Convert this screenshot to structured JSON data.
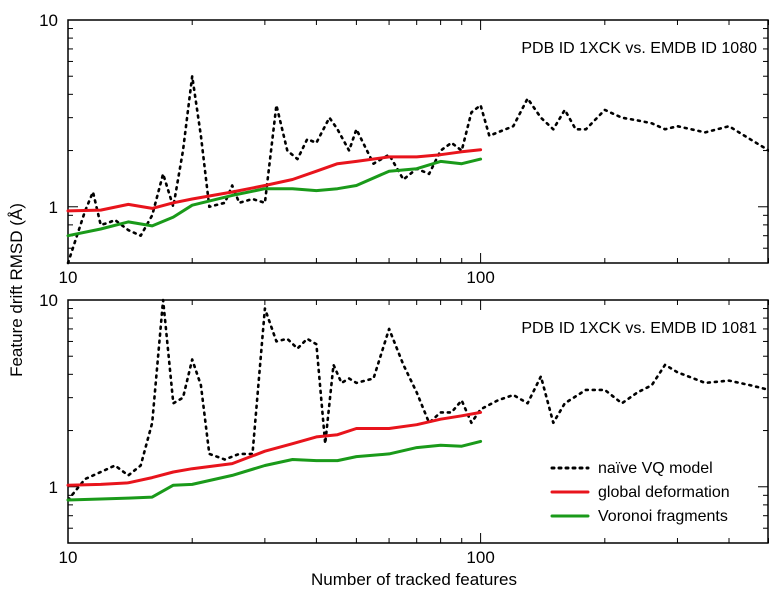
{
  "chart_data": [
    {
      "type": "line",
      "annotation": "PDB ID 1XCK vs. EMDB ID 1080",
      "xlabel": "",
      "ylabel": "",
      "xscale": "log",
      "yscale": "log",
      "xlim": [
        10,
        500
      ],
      "ylim": [
        0.5,
        10
      ],
      "x_tick_labels": [
        "10",
        "100"
      ],
      "y_tick_labels": [
        "1",
        "10"
      ],
      "series": [
        {
          "name": "naïve VQ model",
          "style": "dotted",
          "color": "#000000",
          "x": [
            10,
            11,
            11.5,
            12,
            12.5,
            13,
            14,
            15,
            16,
            17,
            18,
            19,
            20,
            21,
            22,
            24,
            25,
            26,
            28,
            30,
            32,
            34,
            36,
            38,
            40,
            43,
            45,
            48,
            50,
            55,
            60,
            65,
            70,
            75,
            80,
            85,
            90,
            95,
            100,
            105,
            110,
            120,
            130,
            140,
            150,
            160,
            170,
            180,
            200,
            220,
            240,
            260,
            280,
            300,
            350,
            400,
            450,
            500
          ],
          "y": [
            0.5,
            0.95,
            1.2,
            0.8,
            0.82,
            0.85,
            0.75,
            0.7,
            0.9,
            1.5,
            1.0,
            2.0,
            5.0,
            2.4,
            1.0,
            1.05,
            1.3,
            1.05,
            1.1,
            1.05,
            3.5,
            2.0,
            1.8,
            2.3,
            2.2,
            3.0,
            2.6,
            2.0,
            2.6,
            1.7,
            1.9,
            1.4,
            1.6,
            1.5,
            2.0,
            2.2,
            2.0,
            3.2,
            3.5,
            2.4,
            2.5,
            2.7,
            3.8,
            3.0,
            2.6,
            3.3,
            2.6,
            2.6,
            3.3,
            3.0,
            2.9,
            2.8,
            2.6,
            2.7,
            2.5,
            2.7,
            2.3,
            2.0
          ]
        },
        {
          "name": "global deformation",
          "style": "solid",
          "color": "#e8141c",
          "x": [
            10,
            12,
            14,
            16,
            18,
            20,
            25,
            30,
            35,
            40,
            45,
            50,
            60,
            70,
            80,
            90,
            100
          ],
          "y": [
            0.95,
            0.96,
            1.03,
            0.98,
            1.05,
            1.1,
            1.2,
            1.3,
            1.4,
            1.55,
            1.7,
            1.75,
            1.85,
            1.85,
            1.9,
            1.97,
            2.02
          ]
        },
        {
          "name": "Voronoi fragments",
          "style": "solid",
          "color": "#1a9a1a",
          "x": [
            10,
            12,
            14,
            16,
            18,
            20,
            25,
            30,
            35,
            40,
            45,
            50,
            60,
            70,
            80,
            90,
            100
          ],
          "y": [
            0.7,
            0.76,
            0.83,
            0.79,
            0.88,
            1.02,
            1.15,
            1.25,
            1.25,
            1.22,
            1.25,
            1.3,
            1.55,
            1.6,
            1.75,
            1.7,
            1.8
          ]
        }
      ]
    },
    {
      "type": "line",
      "annotation": "PDB ID 1XCK vs. EMDB ID 1081",
      "xlabel": "Number of tracked features",
      "ylabel": "",
      "xscale": "log",
      "yscale": "log",
      "xlim": [
        10,
        500
      ],
      "ylim": [
        0.5,
        10
      ],
      "x_tick_labels": [
        "10",
        "100"
      ],
      "y_tick_labels": [
        "1",
        "10"
      ],
      "legend": "bottom-right",
      "series": [
        {
          "name": "naïve VQ model",
          "style": "dotted",
          "color": "#000000",
          "x": [
            10,
            11,
            12,
            13,
            14,
            15,
            16,
            17,
            18,
            19,
            20,
            21,
            22,
            24,
            26,
            28,
            30,
            32,
            34,
            36,
            38,
            40,
            42,
            44,
            46,
            48,
            50,
            55,
            60,
            65,
            70,
            75,
            80,
            85,
            90,
            95,
            100,
            110,
            120,
            130,
            140,
            150,
            160,
            180,
            200,
            220,
            240,
            260,
            280,
            300,
            350,
            400,
            450,
            500
          ],
          "y": [
            0.85,
            1.1,
            1.2,
            1.3,
            1.15,
            1.3,
            2.2,
            10.0,
            2.8,
            3.0,
            4.8,
            3.5,
            1.5,
            1.4,
            1.5,
            1.5,
            9.0,
            6.0,
            6.2,
            5.5,
            6.2,
            5.8,
            1.7,
            4.5,
            3.6,
            3.8,
            3.6,
            3.8,
            7.0,
            4.5,
            3.2,
            2.2,
            2.5,
            2.5,
            2.9,
            2.2,
            2.6,
            2.9,
            3.1,
            2.8,
            3.9,
            2.2,
            2.8,
            3.3,
            3.3,
            2.8,
            3.2,
            3.5,
            4.5,
            4.1,
            3.6,
            3.7,
            3.5,
            3.3
          ]
        },
        {
          "name": "global deformation",
          "style": "solid",
          "color": "#e8141c",
          "x": [
            10,
            12,
            14,
            16,
            18,
            20,
            25,
            30,
            35,
            40,
            45,
            50,
            60,
            70,
            80,
            90,
            100
          ],
          "y": [
            1.02,
            1.03,
            1.05,
            1.12,
            1.2,
            1.25,
            1.33,
            1.55,
            1.7,
            1.85,
            1.9,
            2.05,
            2.05,
            2.15,
            2.3,
            2.4,
            2.5
          ]
        },
        {
          "name": "Voronoi fragments",
          "style": "solid",
          "color": "#1a9a1a",
          "x": [
            10,
            12,
            14,
            16,
            18,
            20,
            25,
            30,
            35,
            40,
            45,
            50,
            60,
            70,
            80,
            90,
            100
          ],
          "y": [
            0.85,
            0.86,
            0.87,
            0.88,
            1.02,
            1.03,
            1.15,
            1.3,
            1.4,
            1.38,
            1.38,
            1.45,
            1.5,
            1.62,
            1.67,
            1.65,
            1.75
          ]
        }
      ]
    }
  ],
  "shared_ylabel": "Feature drift RMSD (Å)",
  "legend": {
    "items": [
      {
        "label": "naïve VQ model",
        "style": "dotted",
        "color": "#000000"
      },
      {
        "label": "global deformation",
        "style": "solid",
        "color": "#e8141c"
      },
      {
        "label": "Voronoi fragments",
        "style": "solid",
        "color": "#1a9a1a"
      }
    ]
  }
}
